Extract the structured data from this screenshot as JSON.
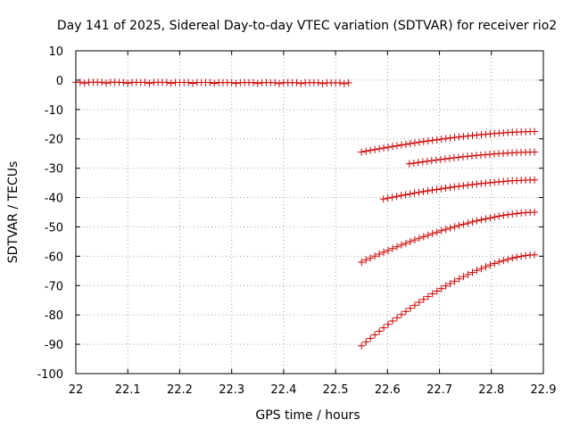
{
  "chart_data": {
    "type": "scatter",
    "title": "Day 141 of 2025, Sidereal Day-to-day VTEC variation (SDTVAR) for receiver rio2",
    "xlabel": "GPS time / hours",
    "ylabel": "SDTVAR / TECUs",
    "xlim": [
      22.0,
      22.9
    ],
    "ylim": [
      -100,
      10
    ],
    "xticks": [
      "22",
      "22.1",
      "22.2",
      "22.3",
      "22.4",
      "22.5",
      "22.6",
      "22.7",
      "22.8",
      "22.9"
    ],
    "yticks": [
      "10",
      "0",
      "-10",
      "-20",
      "-30",
      "-40",
      "-50",
      "-60",
      "-70",
      "-80",
      "-90",
      "-100"
    ],
    "grid": true,
    "marker": "+",
    "color": "#cc0000",
    "series": [
      {
        "name": "track-1",
        "x_start": 22.0,
        "x_end": 22.525,
        "y_start": -0.7,
        "y_end": -0.9,
        "shape": "flat",
        "points": 64
      },
      {
        "name": "track-2",
        "x_start": 22.55,
        "x_end": 22.883,
        "y_start": -24.5,
        "y_end": -17.5,
        "shape": "concave",
        "points": 40
      },
      {
        "name": "track-3",
        "x_start": 22.642,
        "x_end": 22.883,
        "y_start": -28.5,
        "y_end": -24.5,
        "shape": "concave",
        "points": 29
      },
      {
        "name": "track-4",
        "x_start": 22.592,
        "x_end": 22.883,
        "y_start": -40.5,
        "y_end": -34.0,
        "shape": "concave",
        "points": 35
      },
      {
        "name": "track-5",
        "x_start": 22.55,
        "x_end": 22.883,
        "y_start": -62.0,
        "y_end": -45.0,
        "shape": "concave",
        "points": 40
      },
      {
        "name": "track-6",
        "x_start": 22.55,
        "x_end": 22.883,
        "y_start": -90.5,
        "y_end": -59.5,
        "shape": "concave",
        "points": 40
      }
    ]
  }
}
